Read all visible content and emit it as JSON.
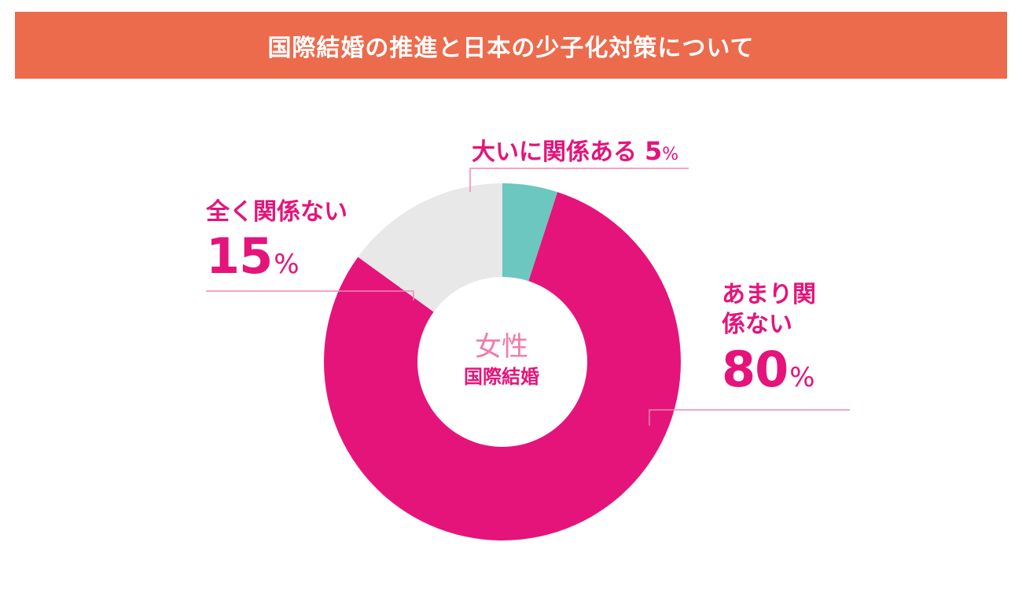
{
  "header": {
    "title": "国際結婚の推進と日本の少子化対策について"
  },
  "chart_data": {
    "type": "pie",
    "center_label": {
      "line1": "女性",
      "line2": "国際結婚"
    },
    "slices": [
      {
        "label": "大いに関係ある",
        "value": 5,
        "display": "5",
        "unit": "%",
        "color": "#6cc7c0"
      },
      {
        "label": "あまり関係ない",
        "value": 80,
        "display": "80",
        "unit": "%",
        "color": "#e5147a"
      },
      {
        "label": "全く関係ない",
        "value": 15,
        "display": "15",
        "unit": "%",
        "color": "#e8e8e8"
      }
    ]
  }
}
